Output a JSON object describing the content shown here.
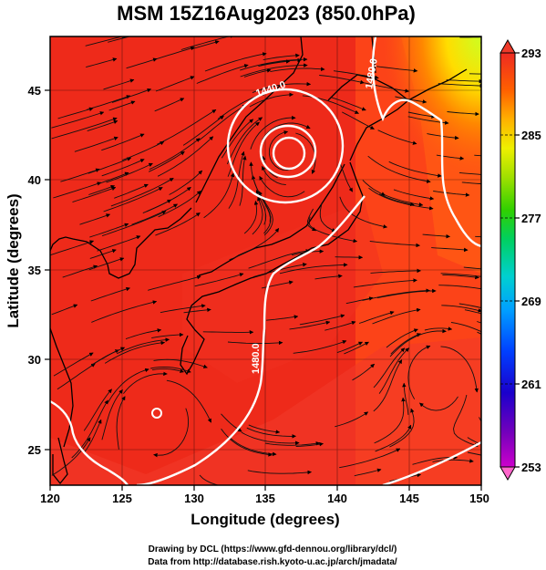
{
  "title": "MSM 15Z16Aug2023 (850.0hPa)",
  "xlabel": "Longitude (degrees)",
  "ylabel": "Latitude  (degrees)",
  "credits": [
    "Drawing by DCL (https://www.gfd-dennou.org/library/dcl/)",
    "Data from http://database.rish.kyoto-u.ac.jp/arch/jmadata/"
  ],
  "map": {
    "lon_range": [
      120,
      150
    ],
    "lat_range": [
      22.5,
      47.5
    ],
    "lon_ticks": [
      "120",
      "125",
      "130",
      "135",
      "140",
      "145",
      "150"
    ],
    "lat_ticks": [
      "25",
      "30",
      "35",
      "40",
      "45"
    ],
    "shading_colors": [
      "#ee2211",
      "#ff4411",
      "#ff6611",
      "#ffaa00",
      "#ccff33"
    ],
    "contour_color": "#ffffff",
    "contour_labels": [
      "1440.0",
      "1480.0",
      "1480.0"
    ],
    "low_pressure_centers": [
      {
        "lon": 136.5,
        "lat": 41.8
      },
      {
        "lon": 127.5,
        "lat": 27.0
      }
    ]
  },
  "colorbar": {
    "tick_labels": [
      "293",
      "285",
      "277",
      "269",
      "261",
      "253"
    ],
    "colors": [
      "#ff66cc",
      "#ee00ee",
      "#9900cc",
      "#2200cc",
      "#0033ff",
      "#0099ff",
      "#00ccdd",
      "#00dd88",
      "#22cc33",
      "#66dd00",
      "#ccee00",
      "#ffee00",
      "#ffbb00",
      "#ff8800",
      "#ff5500",
      "#ff2200",
      "#ee2222"
    ]
  }
}
